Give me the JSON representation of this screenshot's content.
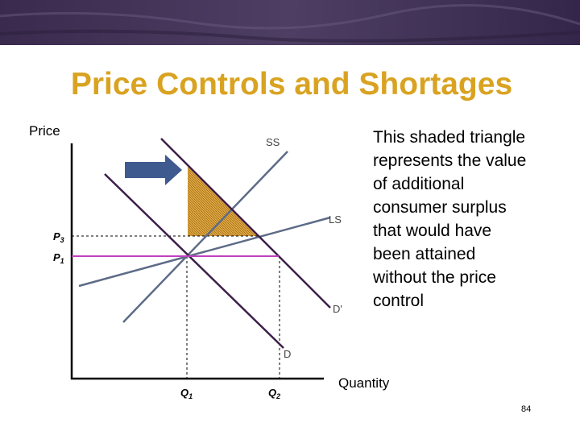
{
  "header": {
    "title": "Price Controls and Shortages"
  },
  "axes": {
    "y_label": "Price",
    "x_label": "Quantity"
  },
  "curves": {
    "ss": "SS",
    "ls": "LS",
    "d_prime": "D'",
    "d": "D"
  },
  "price_labels": [
    {
      "letter": "P",
      "sub": "3"
    },
    {
      "letter": "P",
      "sub": "1"
    }
  ],
  "quantity_labels": [
    {
      "letter": "Q",
      "sub": "1"
    },
    {
      "letter": "Q",
      "sub": "2"
    }
  ],
  "note": {
    "lines": [
      "This shaded triangle",
      "represents the value",
      "of additional",
      "consumer surplus",
      "that would have",
      "been attained",
      "without the price",
      "control"
    ]
  },
  "page_number": "84"
}
